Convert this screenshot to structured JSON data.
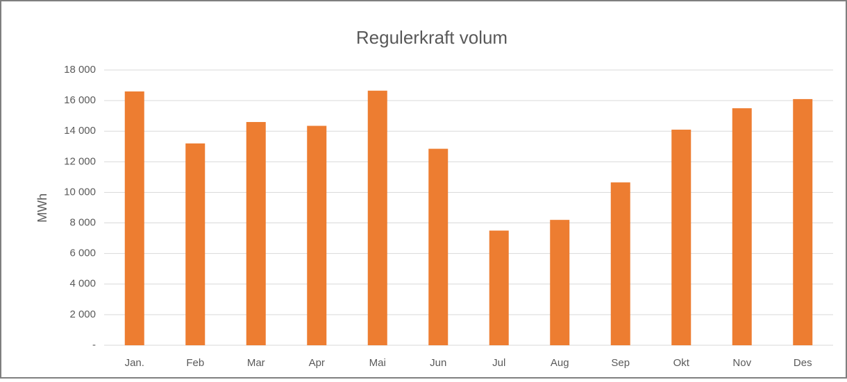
{
  "chart_data": {
    "type": "bar",
    "title": "Regulerkraft volum",
    "y_label": "MWh",
    "categories": [
      "Jan.",
      "Feb",
      "Mar",
      "Apr",
      "Mai",
      "Jun",
      "Jul",
      "Aug",
      "Sep",
      "Okt",
      "Nov",
      "Des"
    ],
    "values": [
      16600,
      13200,
      14600,
      14350,
      16650,
      12850,
      7500,
      8200,
      10650,
      14100,
      15500,
      16100
    ],
    "color": "#ed7d31",
    "ylim": [
      0,
      18000
    ],
    "yticks": [
      {
        "value": 0,
        "label": "-"
      },
      {
        "value": 2000,
        "label": "2 000"
      },
      {
        "value": 4000,
        "label": "4 000"
      },
      {
        "value": 6000,
        "label": "6 000"
      },
      {
        "value": 8000,
        "label": "8 000"
      },
      {
        "value": 10000,
        "label": "10 000"
      },
      {
        "value": 12000,
        "label": "12 000"
      },
      {
        "value": 14000,
        "label": "14 000"
      },
      {
        "value": 16000,
        "label": "16 000"
      },
      {
        "value": 18000,
        "label": "18 000"
      }
    ],
    "grid": true
  }
}
